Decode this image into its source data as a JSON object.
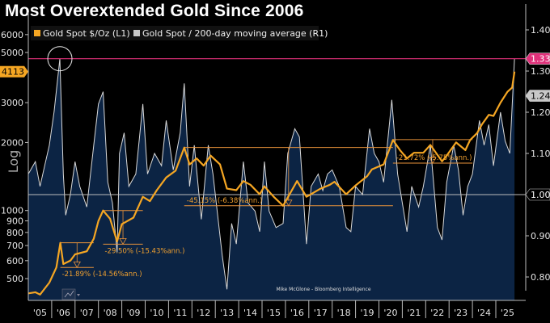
{
  "title": "Most Overextended Gold Since 2006",
  "chart_data": {
    "type": "line",
    "title": "Most Overextended Gold Since 2006",
    "left_axis_label": "Log",
    "left_scale": "log",
    "left_ticks": [
      6000,
      5000,
      3000,
      2000,
      1000,
      900,
      800,
      700,
      600,
      500
    ],
    "right_ticks": [
      "1.40",
      "1.30",
      "1.20",
      "1.10",
      "0.90",
      "0.80"
    ],
    "x_ticks": [
      "'05",
      "'06",
      "'07",
      "'08",
      "'09",
      "'10",
      "'11",
      "'12",
      "'13",
      "'14",
      "'15",
      "'16",
      "'17",
      "'18",
      "'19",
      "'20",
      "'21",
      "'22",
      "'23",
      "'24",
      "'25"
    ],
    "legend": [
      {
        "label": "Gold Spot $/Oz (L1)",
        "color": "#f5a623"
      },
      {
        "label": "Gold Spot / 200-day moving average (R1)",
        "color": "#c8c8c8"
      }
    ],
    "legend_position": "top-left",
    "last_values": {
      "gold": "4113",
      "ratio": "1.24",
      "ratio_line": "1.33",
      "baseline": "1.00"
    },
    "colors": {
      "gold": "#f5a623",
      "ratio_line": "#d9d9d9",
      "ratio_fill": "#0c2444",
      "highlight": "#e0307a",
      "annotation": "#e8923a"
    },
    "series": [
      {
        "name": "Gold Spot $/Oz (L1)",
        "axis": "left",
        "points": [
          [
            2005.0,
            430
          ],
          [
            2005.3,
            435
          ],
          [
            2005.5,
            425
          ],
          [
            2005.9,
            480
          ],
          [
            2006.2,
            560
          ],
          [
            2006.37,
            720
          ],
          [
            2006.5,
            580
          ],
          [
            2006.8,
            600
          ],
          [
            2007.0,
            640
          ],
          [
            2007.5,
            660
          ],
          [
            2007.8,
            750
          ],
          [
            2008.0,
            900
          ],
          [
            2008.2,
            1000
          ],
          [
            2008.5,
            920
          ],
          [
            2008.8,
            730
          ],
          [
            2009.0,
            870
          ],
          [
            2009.5,
            930
          ],
          [
            2009.9,
            1150
          ],
          [
            2010.2,
            1100
          ],
          [
            2010.5,
            1230
          ],
          [
            2010.9,
            1400
          ],
          [
            2011.3,
            1500
          ],
          [
            2011.67,
            1900
          ],
          [
            2011.9,
            1600
          ],
          [
            2012.2,
            1700
          ],
          [
            2012.5,
            1580
          ],
          [
            2012.8,
            1750
          ],
          [
            2013.2,
            1600
          ],
          [
            2013.5,
            1250
          ],
          [
            2013.9,
            1230
          ],
          [
            2014.2,
            1350
          ],
          [
            2014.5,
            1300
          ],
          [
            2014.9,
            1180
          ],
          [
            2015.1,
            1280
          ],
          [
            2015.5,
            1150
          ],
          [
            2015.9,
            1050
          ],
          [
            2016.5,
            1350
          ],
          [
            2016.9,
            1150
          ],
          [
            2017.5,
            1250
          ],
          [
            2017.9,
            1300
          ],
          [
            2018.1,
            1340
          ],
          [
            2018.6,
            1180
          ],
          [
            2019.0,
            1290
          ],
          [
            2019.5,
            1420
          ],
          [
            2019.7,
            1520
          ],
          [
            2020.2,
            1600
          ],
          [
            2020.6,
            2050
          ],
          [
            2020.9,
            1850
          ],
          [
            2021.2,
            1700
          ],
          [
            2021.5,
            1800
          ],
          [
            2021.9,
            1800
          ],
          [
            2022.2,
            1950
          ],
          [
            2022.7,
            1650
          ],
          [
            2022.9,
            1750
          ],
          [
            2023.3,
            2000
          ],
          [
            2023.7,
            1850
          ],
          [
            2023.9,
            2050
          ],
          [
            2024.2,
            2200
          ],
          [
            2024.4,
            2400
          ],
          [
            2024.7,
            2650
          ],
          [
            2024.9,
            2620
          ],
          [
            2025.2,
            3000
          ],
          [
            2025.5,
            3350
          ],
          [
            2025.7,
            3500
          ],
          [
            2025.8,
            4113
          ]
        ]
      },
      {
        "name": "Gold Spot / 200-day moving average (R1)",
        "axis": "right",
        "points": [
          [
            2005.0,
            1.05
          ],
          [
            2005.3,
            1.08
          ],
          [
            2005.5,
            1.02
          ],
          [
            2005.7,
            1.07
          ],
          [
            2005.9,
            1.12
          ],
          [
            2006.1,
            1.2
          ],
          [
            2006.35,
            1.33
          ],
          [
            2006.5,
            1.05
          ],
          [
            2006.6,
            0.95
          ],
          [
            2006.8,
            1.0
          ],
          [
            2007.0,
            1.08
          ],
          [
            2007.2,
            1.02
          ],
          [
            2007.5,
            0.97
          ],
          [
            2007.8,
            1.12
          ],
          [
            2008.0,
            1.22
          ],
          [
            2008.2,
            1.25
          ],
          [
            2008.4,
            1.03
          ],
          [
            2008.6,
            0.98
          ],
          [
            2008.8,
            0.86
          ],
          [
            2008.9,
            1.1
          ],
          [
            2009.1,
            1.15
          ],
          [
            2009.3,
            1.02
          ],
          [
            2009.6,
            1.05
          ],
          [
            2009.9,
            1.22
          ],
          [
            2010.1,
            1.05
          ],
          [
            2010.4,
            1.1
          ],
          [
            2010.7,
            1.07
          ],
          [
            2010.9,
            1.18
          ],
          [
            2011.2,
            1.06
          ],
          [
            2011.5,
            1.15
          ],
          [
            2011.67,
            1.27
          ],
          [
            2011.9,
            1.02
          ],
          [
            2012.1,
            1.12
          ],
          [
            2012.4,
            0.94
          ],
          [
            2012.7,
            1.12
          ],
          [
            2012.9,
            1.05
          ],
          [
            2013.1,
            0.95
          ],
          [
            2013.3,
            0.85
          ],
          [
            2013.5,
            0.77
          ],
          [
            2013.7,
            0.93
          ],
          [
            2013.9,
            0.88
          ],
          [
            2014.2,
            1.08
          ],
          [
            2014.4,
            0.98
          ],
          [
            2014.7,
            0.96
          ],
          [
            2014.9,
            0.91
          ],
          [
            2015.1,
            1.08
          ],
          [
            2015.3,
            0.96
          ],
          [
            2015.6,
            0.92
          ],
          [
            2015.9,
            0.93
          ],
          [
            2016.1,
            1.1
          ],
          [
            2016.4,
            1.16
          ],
          [
            2016.6,
            1.14
          ],
          [
            2016.9,
            0.88
          ],
          [
            2017.1,
            1.02
          ],
          [
            2017.4,
            1.05
          ],
          [
            2017.6,
            1.01
          ],
          [
            2017.8,
            1.05
          ],
          [
            2018.0,
            1.06
          ],
          [
            2018.3,
            1.02
          ],
          [
            2018.6,
            0.92
          ],
          [
            2018.8,
            0.91
          ],
          [
            2019.0,
            1.02
          ],
          [
            2019.3,
            1.0
          ],
          [
            2019.6,
            1.16
          ],
          [
            2019.8,
            1.1
          ],
          [
            2020.0,
            1.08
          ],
          [
            2020.2,
            1.03
          ],
          [
            2020.55,
            1.23
          ],
          [
            2020.8,
            1.05
          ],
          [
            2021.0,
            0.98
          ],
          [
            2021.2,
            0.91
          ],
          [
            2021.4,
            1.02
          ],
          [
            2021.7,
            0.97
          ],
          [
            2021.9,
            1.02
          ],
          [
            2022.2,
            1.12
          ],
          [
            2022.5,
            0.92
          ],
          [
            2022.7,
            0.89
          ],
          [
            2022.9,
            1.03
          ],
          [
            2023.2,
            1.12
          ],
          [
            2023.4,
            1.06
          ],
          [
            2023.6,
            0.95
          ],
          [
            2023.8,
            1.02
          ],
          [
            2024.0,
            1.05
          ],
          [
            2024.3,
            1.18
          ],
          [
            2024.5,
            1.12
          ],
          [
            2024.7,
            1.17
          ],
          [
            2024.9,
            1.07
          ],
          [
            2025.2,
            1.2
          ],
          [
            2025.4,
            1.13
          ],
          [
            2025.6,
            1.1
          ],
          [
            2025.8,
            1.33
          ]
        ]
      }
    ],
    "drawdowns": [
      {
        "label": "-21.89% (-14.56%ann.)",
        "start": 2006.37,
        "end": 2007.8,
        "high": 720,
        "low": 560
      },
      {
        "label": "-29.50% (-15.43%ann.)",
        "start": 2008.2,
        "end": 2009.9,
        "high": 1000,
        "low": 710
      },
      {
        "label": "-45.15% (-6.38%ann.)",
        "start": 2011.67,
        "end": 2020.6,
        "high": 1900,
        "low": 1050
      },
      {
        "label": "-21.72% (-5.75%ann.)",
        "start": 2020.6,
        "end": 2024.0,
        "high": 2060,
        "low": 1620
      }
    ],
    "reference_lines": [
      1.33,
      1.0
    ],
    "credit": "Mike McGlone - Bloomberg Intelligence"
  }
}
